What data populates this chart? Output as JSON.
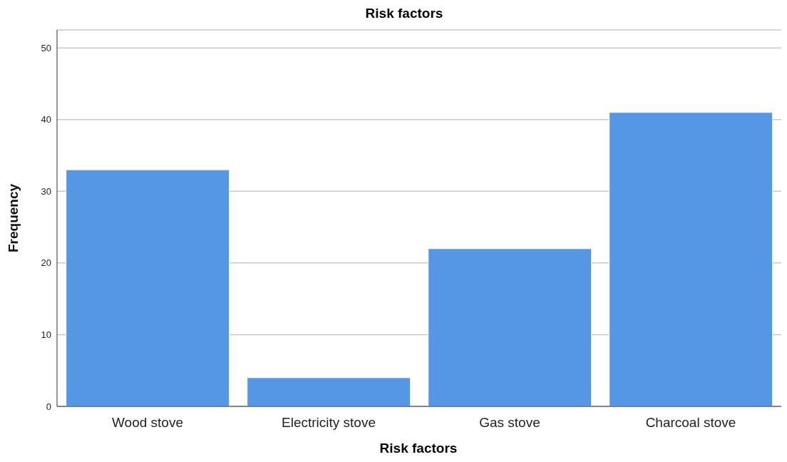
{
  "chart_data": {
    "type": "bar",
    "title": "Risk factors",
    "xlabel": "Risk factors",
    "ylabel": "Frequency",
    "categories": [
      "Wood stove",
      "Electricity stove",
      "Gas stove",
      "Charcoal stove"
    ],
    "values": [
      33,
      4,
      22,
      41
    ],
    "color": "#5596e5",
    "ylim": [
      0,
      52.5
    ],
    "yticks": [
      0,
      10,
      20,
      30,
      40,
      50
    ],
    "grid": "y"
  }
}
